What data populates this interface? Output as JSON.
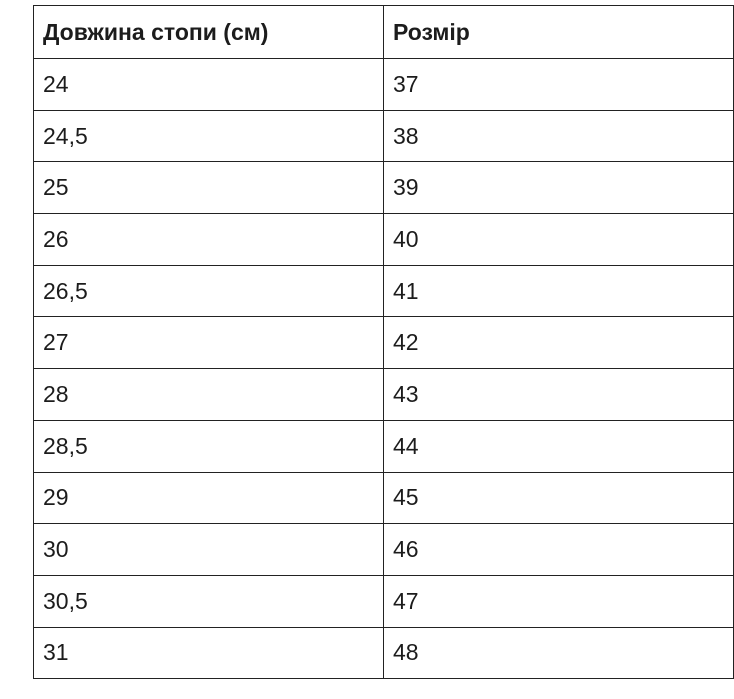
{
  "table": {
    "header": [
      "Довжина стопи (см)",
      "Розмір"
    ],
    "rows": [
      [
        "24",
        "37"
      ],
      [
        "24,5",
        "38"
      ],
      [
        "25",
        "39"
      ],
      [
        "26",
        "40"
      ],
      [
        "26,5",
        "41"
      ],
      [
        "27",
        "42"
      ],
      [
        "28",
        "43"
      ],
      [
        "28,5",
        "44"
      ],
      [
        "29",
        "45"
      ],
      [
        "30",
        "46"
      ],
      [
        "30,5",
        "47"
      ],
      [
        "31",
        "48"
      ]
    ]
  }
}
